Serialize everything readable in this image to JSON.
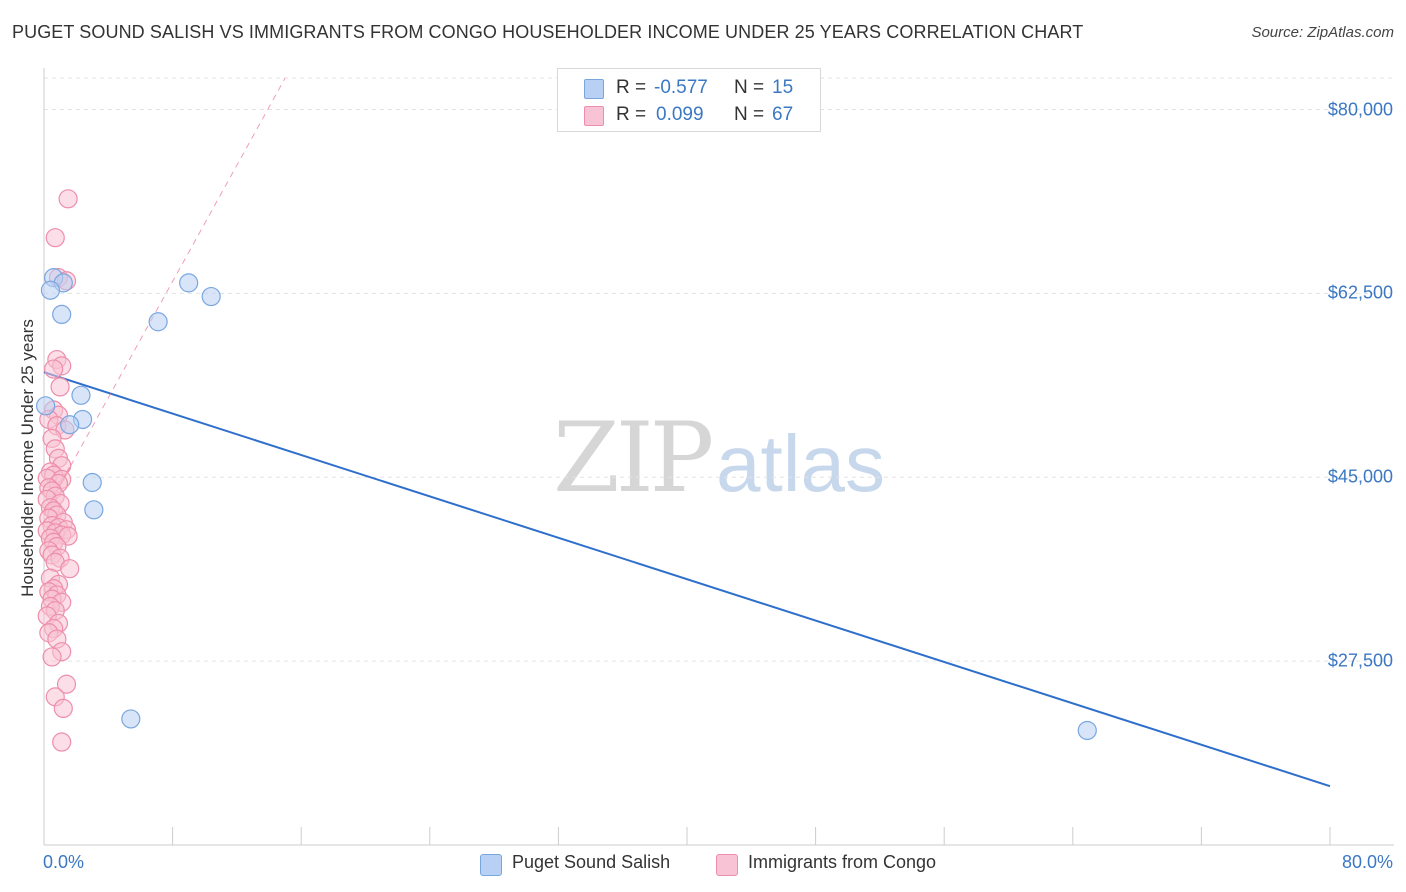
{
  "title": "PUGET SOUND SALISH VS IMMIGRANTS FROM CONGO HOUSEHOLDER INCOME UNDER 25 YEARS CORRELATION CHART",
  "source": "Source: ZipAtlas.com",
  "watermark": {
    "zip": "ZIP",
    "atlas": "atlas"
  },
  "colors": {
    "blue_fill": "#b8d0f3",
    "blue_stroke": "#7aa6e0",
    "blue_line": "#2f6fcc",
    "pink_fill": "#f8c3d4",
    "pink_stroke": "#ee8eab",
    "pink_line": "#e85d8a",
    "grid": "#e3e3e3",
    "axis_text": "#3b78c4"
  },
  "legend_top": [
    {
      "series": "Puget Sound Salish",
      "r_label": "R =",
      "r_value": "-0.577",
      "n_label": "N =",
      "n_value": "15"
    },
    {
      "series": "Immigrants from Congo",
      "r_label": "R =",
      "r_value": "0.099",
      "n_label": "N =",
      "n_value": "67"
    }
  ],
  "legend_bottom": [
    "Puget Sound Salish",
    "Immigrants from Congo"
  ],
  "chart_data": {
    "type": "scatter",
    "title": "PUGET SOUND SALISH VS IMMIGRANTS FROM CONGO HOUSEHOLDER INCOME UNDER 25 YEARS CORRELATION CHART",
    "xlabel": "",
    "ylabel": "Householder Income Under 25 years",
    "xlim": [
      0,
      80
    ],
    "ylim": [
      10000,
      83000
    ],
    "x_tick_labels": [
      "0.0%",
      "80.0%"
    ],
    "y_ticks": [
      27500,
      45000,
      62500,
      80000
    ],
    "y_tick_labels": [
      "$27,500",
      "$45,000",
      "$62,500",
      "$80,000"
    ],
    "grid": true,
    "series": [
      {
        "name": "Puget Sound Salish",
        "color": "#b8d0f3",
        "points": [
          [
            0.6,
            64000
          ],
          [
            1.2,
            63500
          ],
          [
            0.4,
            62800
          ],
          [
            1.1,
            60500
          ],
          [
            9.0,
            63500
          ],
          [
            10.4,
            62200
          ],
          [
            7.1,
            59800
          ],
          [
            2.3,
            52800
          ],
          [
            2.4,
            50500
          ],
          [
            1.6,
            50000
          ],
          [
            0.1,
            51800
          ],
          [
            3.0,
            44500
          ],
          [
            3.1,
            41900
          ],
          [
            5.4,
            22000
          ],
          [
            64.9,
            20900
          ]
        ],
        "trend": {
          "x": [
            0,
            80
          ],
          "y": [
            55000,
            15600
          ],
          "style": "solid"
        }
      },
      {
        "name": "Immigrants from Congo",
        "color": "#f8c3d4",
        "points": [
          [
            1.5,
            71500
          ],
          [
            0.7,
            67800
          ],
          [
            0.9,
            64000
          ],
          [
            1.4,
            63700
          ],
          [
            0.8,
            56200
          ],
          [
            1.1,
            55600
          ],
          [
            0.6,
            55300
          ],
          [
            1.0,
            53600
          ],
          [
            0.6,
            51400
          ],
          [
            0.9,
            50900
          ],
          [
            0.3,
            50500
          ],
          [
            0.8,
            49900
          ],
          [
            1.3,
            49500
          ],
          [
            0.5,
            48700
          ],
          [
            0.7,
            47700
          ],
          [
            0.9,
            46800
          ],
          [
            1.1,
            46100
          ],
          [
            0.4,
            45500
          ],
          [
            0.6,
            45200
          ],
          [
            0.2,
            44900
          ],
          [
            1.1,
            44800
          ],
          [
            0.9,
            44400
          ],
          [
            0.3,
            44000
          ],
          [
            0.5,
            43700
          ],
          [
            0.7,
            43200
          ],
          [
            0.2,
            42900
          ],
          [
            1.0,
            42500
          ],
          [
            0.4,
            42100
          ],
          [
            0.6,
            41800
          ],
          [
            0.8,
            41400
          ],
          [
            0.3,
            41100
          ],
          [
            1.2,
            40700
          ],
          [
            0.5,
            40400
          ],
          [
            0.9,
            40200
          ],
          [
            1.4,
            40000
          ],
          [
            0.2,
            39900
          ],
          [
            0.7,
            39700
          ],
          [
            1.1,
            39500
          ],
          [
            1.5,
            39400
          ],
          [
            0.4,
            39200
          ],
          [
            0.6,
            38800
          ],
          [
            0.8,
            38400
          ],
          [
            0.3,
            38000
          ],
          [
            0.5,
            37600
          ],
          [
            1.0,
            37300
          ],
          [
            0.7,
            36900
          ],
          [
            1.6,
            36300
          ],
          [
            0.4,
            35400
          ],
          [
            0.9,
            34800
          ],
          [
            0.6,
            34400
          ],
          [
            0.3,
            34100
          ],
          [
            0.8,
            33800
          ],
          [
            0.5,
            33400
          ],
          [
            1.1,
            33100
          ],
          [
            0.4,
            32700
          ],
          [
            0.7,
            32300
          ],
          [
            0.2,
            31800
          ],
          [
            0.9,
            31100
          ],
          [
            0.6,
            30600
          ],
          [
            0.3,
            30200
          ],
          [
            0.8,
            29600
          ],
          [
            1.1,
            28400
          ],
          [
            0.5,
            27900
          ],
          [
            1.4,
            25300
          ],
          [
            0.7,
            24100
          ],
          [
            1.2,
            23000
          ],
          [
            1.1,
            19800
          ]
        ],
        "trend": {
          "x": [
            0,
            15
          ],
          "y": [
            41500,
            83000
          ],
          "style": "dashed",
          "solid_segment_x": [
            0,
            1.6
          ]
        }
      }
    ]
  }
}
